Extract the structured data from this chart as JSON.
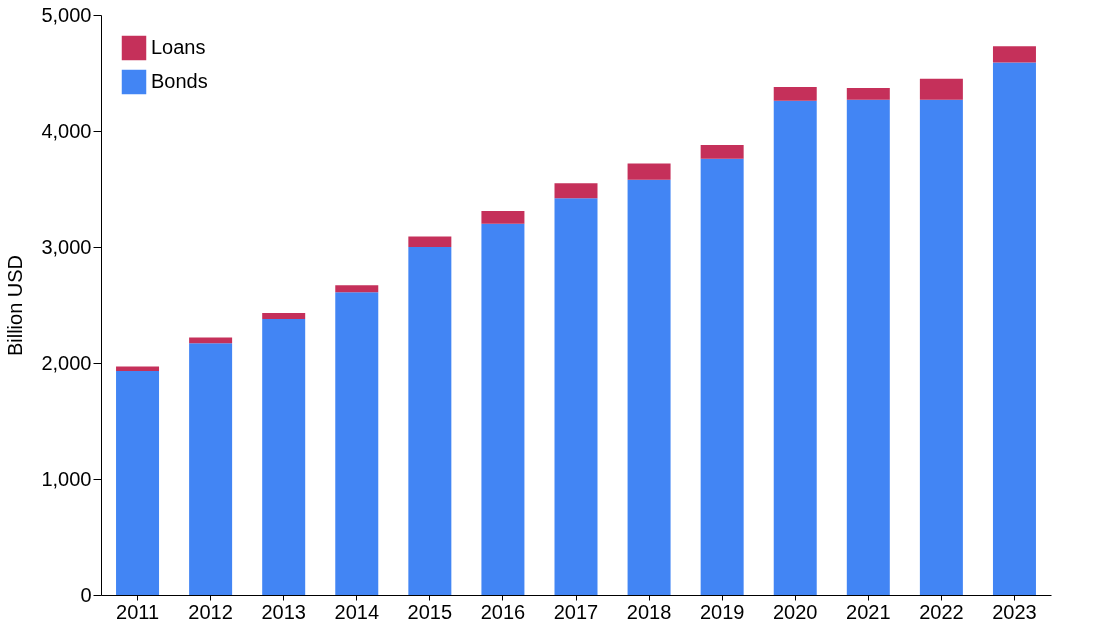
{
  "chart_data": {
    "type": "bar",
    "stacked": true,
    "ylabel": "Billion USD",
    "categories": [
      "2011",
      "2012",
      "2013",
      "2014",
      "2015",
      "2016",
      "2017",
      "2018",
      "2019",
      "2020",
      "2021",
      "2022",
      "2023"
    ],
    "series": [
      {
        "name": "Bonds",
        "color": "#4285f4",
        "values": [
          1930,
          2170,
          2380,
          2610,
          3000,
          3200,
          3420,
          3580,
          3760,
          4260,
          4270,
          4270,
          4590
        ]
      },
      {
        "name": "Loans",
        "color": "#c5305a",
        "values": [
          40,
          50,
          50,
          60,
          90,
          110,
          130,
          140,
          120,
          120,
          100,
          180,
          140
        ]
      }
    ],
    "ylim": [
      0,
      5000
    ],
    "yticks": [
      0,
      {
        "value": 1000,
        "label": "1,000"
      },
      {
        "value": 2000,
        "label": "2,000"
      },
      {
        "value": 3000,
        "label": "3,000"
      },
      {
        "value": 4000,
        "label": "4,000"
      },
      {
        "value": 5000,
        "label": "5,000"
      }
    ],
    "grid": false,
    "legend": "top left"
  }
}
